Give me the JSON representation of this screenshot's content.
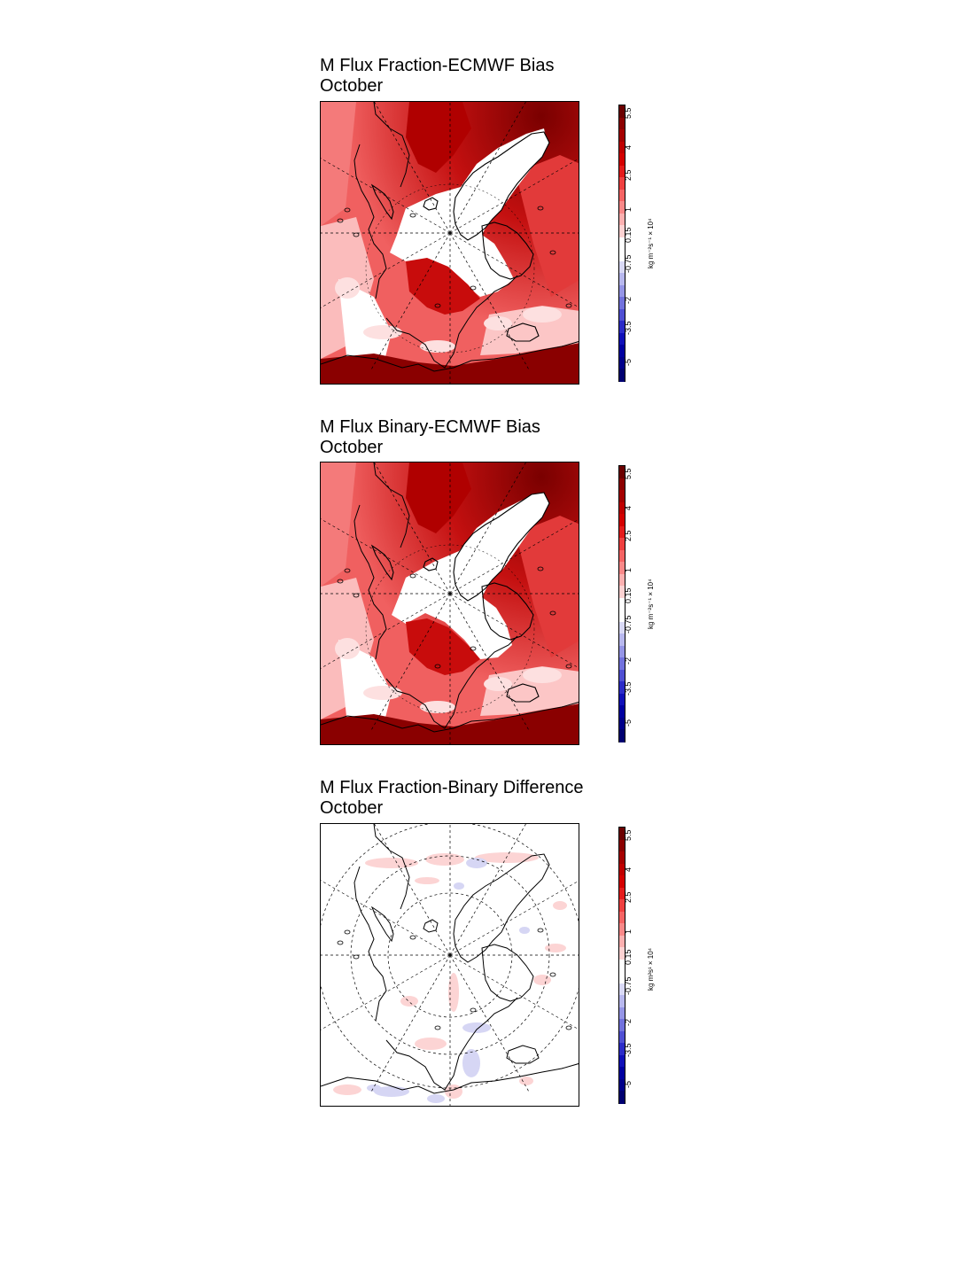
{
  "panels": [
    {
      "title_line1": "M Flux Fraction-ECMWF Bias",
      "title_line2": "October",
      "style": "bias"
    },
    {
      "title_line1": "M Flux Binary-ECMWF Bias",
      "title_line2": "October",
      "style": "bias"
    },
    {
      "title_line1": "M Flux Fraction-Binary Difference",
      "title_line2": "October",
      "style": "diff"
    }
  ],
  "colorbar": {
    "ticks": [
      "5.5",
      "4",
      "2.5",
      "1",
      "0.15",
      "-0.75",
      "-2",
      "-3.5",
      "-5"
    ],
    "unit_bias": "kg m⁻²s⁻¹ × 10⁴",
    "unit_diff": "kg m²s¹ × 10⁴",
    "colors_top_to_bottom": [
      "#6b0000",
      "#8b0000",
      "#a50000",
      "#bf0000",
      "#d40000",
      "#e41b1b",
      "#ef4040",
      "#f56464",
      "#f98989",
      "#fcb0b0",
      "#fdd2d2",
      "#ffffff",
      "#ffffff",
      "#d9d9f5",
      "#b8b8ee",
      "#9595e6",
      "#7272dd",
      "#4f4fd3",
      "#2c2cc8",
      "#1010b8",
      "#0000a0",
      "#00008a",
      "#000070"
    ]
  }
}
